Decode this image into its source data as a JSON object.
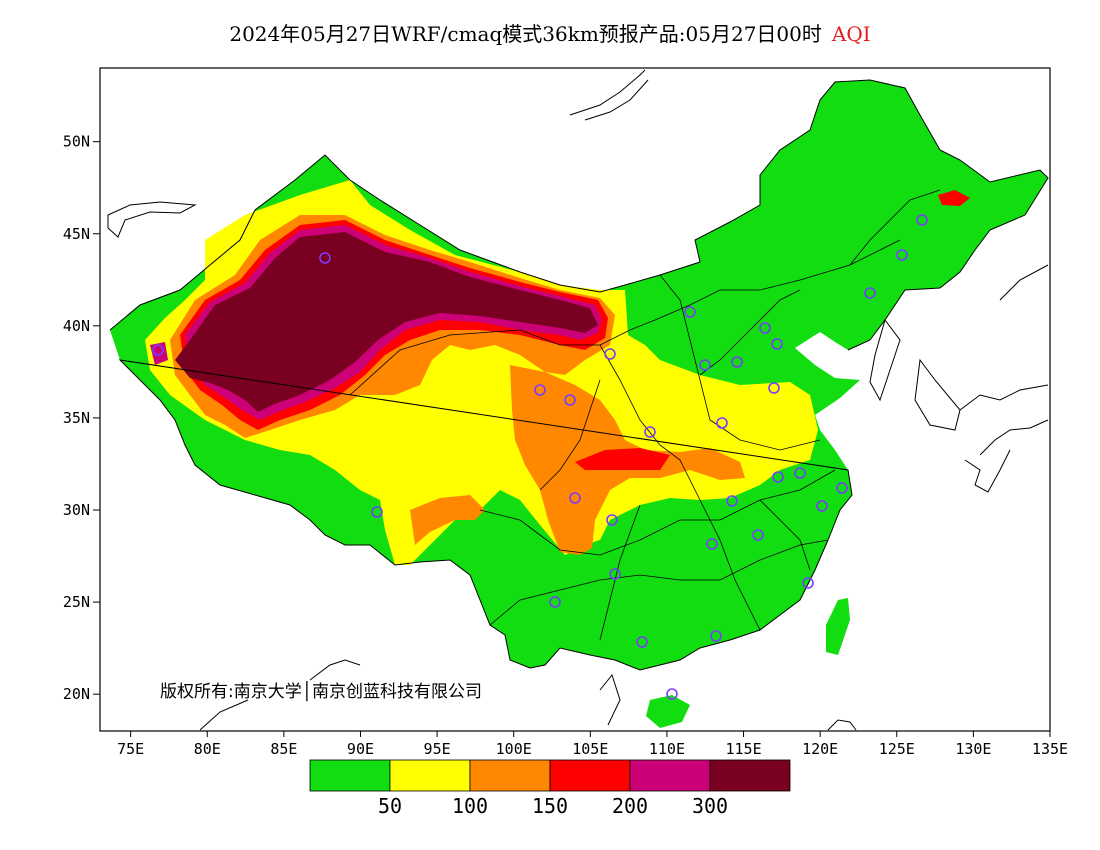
{
  "title": {
    "main": "2024年05月27日WRF/cmaq模式36km预报产品:05月27日00时",
    "variable": "AQI"
  },
  "map": {
    "lat_ticks": [
      "50N",
      "45N",
      "40N",
      "35N",
      "30N",
      "25N",
      "20N"
    ],
    "lon_ticks": [
      "75E",
      "80E",
      "85E",
      "90E",
      "95E",
      "100E",
      "105E",
      "110E",
      "115E",
      "120E",
      "125E",
      "130E",
      "135E"
    ],
    "lon_range": [
      73,
      135
    ],
    "lat_range": [
      18,
      54
    ],
    "copyright": "版权所有:南京大学│南京创蓝科技有限公司"
  },
  "legend": {
    "colors": [
      "#11dd11",
      "#ffff00",
      "#ff8800",
      "#ff0000",
      "#cc0077",
      "#7a0022"
    ],
    "labels": [
      "50",
      "100",
      "150",
      "200",
      "300"
    ]
  }
}
